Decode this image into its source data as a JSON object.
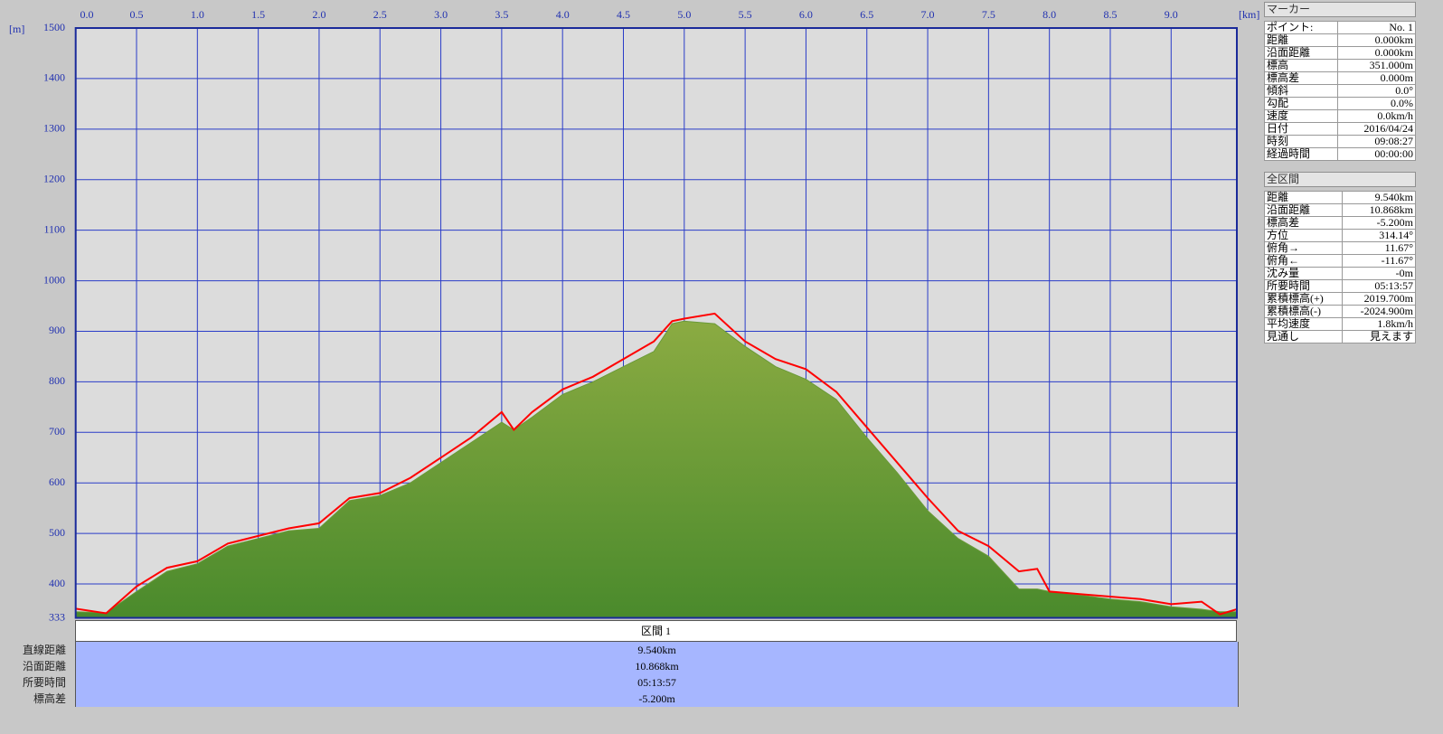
{
  "chart_data": {
    "type": "line",
    "x_label": "[km]",
    "y_label": "[m]",
    "x": [
      0,
      0.25,
      0.5,
      0.75,
      1,
      1.25,
      1.5,
      1.75,
      2,
      2.25,
      2.5,
      2.75,
      3,
      3.25,
      3.5,
      3.6,
      3.75,
      4,
      4.25,
      4.5,
      4.75,
      4.9,
      5,
      5.25,
      5.5,
      5.75,
      6,
      6.25,
      6.5,
      6.75,
      7,
      7.25,
      7.5,
      7.75,
      7.9,
      8,
      8.25,
      8.5,
      8.75,
      9,
      9.25,
      9.4,
      9.54
    ],
    "series": [
      {
        "style": "area",
        "color": "#6a9a38",
        "values": [
          345,
          343,
          385,
          425,
          440,
          475,
          490,
          505,
          510,
          565,
          575,
          600,
          640,
          680,
          720,
          705,
          730,
          775,
          800,
          830,
          860,
          915,
          920,
          915,
          870,
          830,
          805,
          765,
          690,
          620,
          545,
          490,
          455,
          390,
          390,
          385,
          378,
          370,
          365,
          355,
          350,
          345,
          345
        ]
      },
      {
        "style": "line",
        "color": "#ff0000",
        "values": [
          351,
          342,
          395,
          432,
          445,
          480,
          495,
          510,
          520,
          570,
          580,
          610,
          650,
          690,
          740,
          705,
          740,
          785,
          810,
          845,
          880,
          920,
          925,
          935,
          880,
          845,
          825,
          780,
          710,
          640,
          570,
          505,
          475,
          425,
          430,
          385,
          380,
          375,
          370,
          360,
          365,
          340,
          350
        ]
      }
    ],
    "xlim": [
      0,
      9.54
    ],
    "xticks": [
      {
        "value": 0,
        "label": "0.0"
      },
      0.5,
      {
        "value": 1,
        "label": "1.0"
      },
      1.5,
      {
        "value": 2,
        "label": "2.0"
      },
      2.5,
      {
        "value": 3,
        "label": "3.0"
      },
      3.5,
      {
        "value": 4,
        "label": "4.0"
      },
      4.5,
      {
        "value": 5,
        "label": "5.0"
      },
      5.5,
      {
        "value": 6,
        "label": "6.0"
      },
      6.5,
      {
        "value": 7,
        "label": "7.0"
      },
      7.5,
      {
        "value": 8,
        "label": "8.0"
      },
      8.5,
      {
        "value": 9,
        "label": "9.0"
      }
    ],
    "ylim": [
      333,
      1500
    ],
    "yticks": [
      333,
      400,
      500,
      600,
      700,
      800,
      900,
      1000,
      1100,
      1200,
      1300,
      1400,
      1500
    ],
    "grid": true
  },
  "marker_panel": {
    "title": "マーカー",
    "rows": [
      [
        "ポイント:",
        "No. 1"
      ],
      [
        "距離",
        "0.000km"
      ],
      [
        "沿面距離",
        "0.000km"
      ],
      [
        "標高",
        "351.000m"
      ],
      [
        "標高差",
        "0.000m"
      ],
      [
        "傾斜",
        "0.0°"
      ],
      [
        "勾配",
        "0.0%"
      ],
      [
        "速度",
        "0.0km/h"
      ],
      [
        "日付",
        "2016/04/24"
      ],
      [
        "時刻",
        "09:08:27"
      ],
      [
        "経過時間",
        "00:00:00"
      ]
    ]
  },
  "total_panel": {
    "title": "全区間",
    "rows": [
      [
        "距離",
        "9.540km"
      ],
      [
        "沿面距離",
        "10.868km"
      ],
      [
        "標高差",
        "-5.200m"
      ],
      [
        "方位",
        "314.14°"
      ],
      [
        "俯角→",
        "11.67°"
      ],
      [
        "俯角←",
        "-11.67°"
      ],
      [
        "沈み量",
        "-0m"
      ],
      [
        "所要時間",
        "05:13:57"
      ],
      [
        "累積標高(+)",
        "2019.700m"
      ],
      [
        "累積標高(-)",
        "-2024.900m"
      ],
      [
        "平均速度",
        "1.8km/h"
      ],
      [
        "見通し",
        "見えます"
      ]
    ]
  },
  "section_table": {
    "header": "区間 1",
    "rows": [
      [
        "直線距離",
        "9.540km"
      ],
      [
        "沿面距離",
        "10.868km"
      ],
      [
        "所要時間",
        "05:13:57"
      ],
      [
        "標高差",
        "-5.200m"
      ]
    ]
  }
}
